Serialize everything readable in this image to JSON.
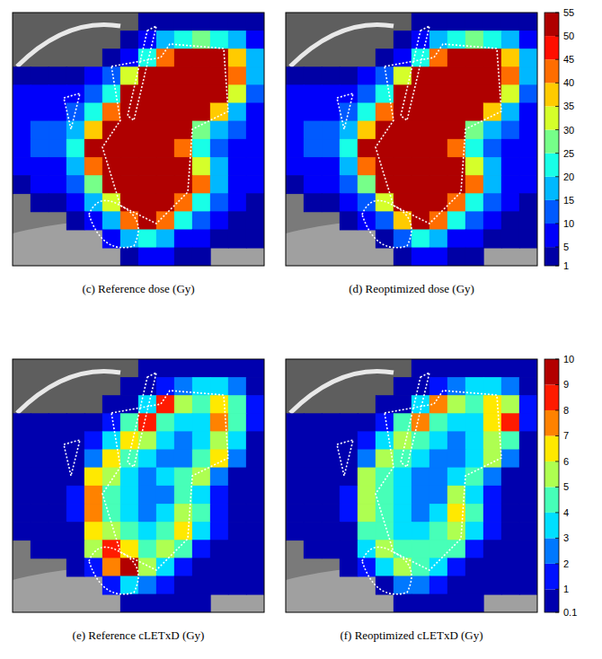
{
  "chart_data": [
    {
      "type": "heatmap",
      "tick_labels": false,
      "zlim": [
        1,
        55
      ],
      "zticks": [
        1,
        5,
        10,
        15,
        20,
        25,
        30,
        35,
        40,
        45,
        50,
        55
      ],
      "panels": [
        {
          "title": "(c) Reference dose (Gy)",
          "cells": [
            [
              null,
              null,
              null,
              null,
              null,
              null,
              null,
              3,
              3,
              3,
              3,
              3,
              3,
              3
            ],
            [
              null,
              null,
              null,
              null,
              null,
              null,
              3,
              7,
              18,
              25,
              30,
              25,
              18,
              10
            ],
            [
              null,
              null,
              null,
              null,
              null,
              3,
              7,
              25,
              45,
              52,
              52,
              52,
              40,
              18
            ],
            [
              3,
              3,
              3,
              3,
              7,
              12,
              35,
              52,
              52,
              52,
              52,
              52,
              45,
              18
            ],
            [
              7,
              7,
              7,
              7,
              12,
              25,
              52,
              52,
              52,
              52,
              52,
              52,
              35,
              12
            ],
            [
              10,
              10,
              10,
              12,
              25,
              45,
              52,
              52,
              52,
              52,
              52,
              40,
              20,
              10
            ],
            [
              10,
              12,
              12,
              18,
              40,
              52,
              52,
              52,
              52,
              52,
              30,
              18,
              12,
              7
            ],
            [
              7,
              12,
              12,
              25,
              52,
              52,
              52,
              52,
              52,
              45,
              25,
              15,
              10,
              7
            ],
            [
              7,
              7,
              10,
              20,
              45,
              52,
              52,
              52,
              52,
              52,
              35,
              18,
              10,
              7
            ],
            [
              3,
              7,
              7,
              12,
              30,
              52,
              52,
              52,
              52,
              52,
              45,
              20,
              10,
              7
            ],
            [
              null,
              3,
              3,
              7,
              18,
              35,
              52,
              52,
              52,
              45,
              25,
              12,
              7,
              3
            ],
            [
              null,
              null,
              null,
              3,
              7,
              18,
              45,
              52,
              45,
              25,
              12,
              7,
              3,
              3
            ],
            [
              null,
              null,
              null,
              null,
              null,
              7,
              18,
              25,
              18,
              10,
              7,
              3,
              3,
              3
            ],
            [
              null,
              null,
              null,
              null,
              null,
              null,
              3,
              7,
              7,
              3,
              3,
              null,
              null,
              null
            ]
          ]
        },
        {
          "title": "(d) Reoptimized dose (Gy)",
          "cells": [
            [
              null,
              null,
              null,
              null,
              null,
              null,
              null,
              3,
              3,
              3,
              3,
              3,
              3,
              3
            ],
            [
              null,
              null,
              null,
              null,
              null,
              null,
              3,
              7,
              18,
              25,
              30,
              25,
              18,
              10
            ],
            [
              null,
              null,
              null,
              null,
              null,
              3,
              7,
              25,
              45,
              52,
              52,
              52,
              40,
              18
            ],
            [
              3,
              3,
              3,
              3,
              7,
              12,
              35,
              52,
              52,
              52,
              52,
              52,
              45,
              18
            ],
            [
              7,
              7,
              7,
              7,
              12,
              25,
              52,
              52,
              52,
              52,
              52,
              52,
              35,
              12
            ],
            [
              10,
              10,
              10,
              12,
              25,
              45,
              52,
              52,
              52,
              52,
              52,
              40,
              20,
              10
            ],
            [
              10,
              12,
              12,
              18,
              40,
              52,
              52,
              52,
              52,
              52,
              30,
              18,
              12,
              7
            ],
            [
              7,
              12,
              12,
              25,
              52,
              52,
              52,
              52,
              52,
              45,
              25,
              15,
              10,
              7
            ],
            [
              7,
              7,
              10,
              20,
              45,
              52,
              52,
              52,
              52,
              52,
              35,
              18,
              10,
              7
            ],
            [
              3,
              7,
              7,
              12,
              30,
              52,
              52,
              52,
              52,
              52,
              45,
              20,
              10,
              7
            ],
            [
              null,
              3,
              3,
              7,
              15,
              35,
              52,
              52,
              52,
              45,
              25,
              12,
              7,
              3
            ],
            [
              null,
              null,
              null,
              3,
              7,
              12,
              40,
              52,
              45,
              25,
              12,
              7,
              3,
              3
            ],
            [
              null,
              null,
              null,
              null,
              null,
              3,
              12,
              25,
              18,
              10,
              7,
              3,
              3,
              3
            ],
            [
              null,
              null,
              null,
              null,
              null,
              null,
              3,
              7,
              7,
              3,
              3,
              null,
              null,
              null
            ]
          ]
        }
      ]
    },
    {
      "type": "heatmap",
      "tick_labels": false,
      "zlim": [
        0.1,
        10
      ],
      "zticks": [
        0.1,
        1,
        2,
        3,
        4,
        5,
        6,
        7,
        8,
        9,
        10
      ],
      "panels": [
        {
          "title": "(e) Reference cLETxD (Gy)",
          "cells": [
            [
              null,
              null,
              null,
              null,
              null,
              null,
              null,
              0.5,
              0.5,
              0.5,
              0.5,
              0.5,
              0.5,
              0.5
            ],
            [
              null,
              null,
              null,
              null,
              null,
              null,
              0.5,
              1,
              2,
              3,
              4,
              4,
              3,
              1
            ],
            [
              null,
              null,
              null,
              null,
              null,
              0.5,
              1,
              4,
              9,
              6,
              5,
              7,
              5,
              2
            ],
            [
              0.5,
              0.5,
              0.5,
              0.5,
              1,
              2,
              5,
              9,
              5,
              4,
              4,
              8,
              5,
              2
            ],
            [
              0.5,
              0.5,
              0.5,
              1,
              2,
              4,
              7,
              6,
              4,
              3,
              4,
              6,
              4,
              1
            ],
            [
              0.5,
              0.5,
              0.5,
              1,
              3,
              7,
              5,
              4,
              3,
              3,
              5,
              7,
              3,
              1
            ],
            [
              0.5,
              0.5,
              0.5,
              1,
              7,
              6,
              4,
              3,
              4,
              5,
              6,
              3,
              1,
              0.5
            ],
            [
              0.5,
              0.5,
              0.5,
              2,
              8,
              5,
              4,
              3,
              3,
              5,
              4,
              2,
              1,
              0.5
            ],
            [
              0.5,
              0.5,
              0.5,
              2,
              8,
              5,
              4,
              3,
              4,
              6,
              5,
              2,
              1,
              0.5
            ],
            [
              0.5,
              0.5,
              0.5,
              1,
              7,
              6,
              5,
              4,
              5,
              7,
              4,
              2,
              1,
              0.5
            ],
            [
              null,
              0.5,
              0.5,
              1,
              6,
              9,
              7,
              5,
              6,
              5,
              2,
              1,
              0.5,
              0.5
            ],
            [
              null,
              null,
              null,
              0.5,
              2,
              8,
              10,
              6,
              4,
              2,
              1,
              0.5,
              0.5,
              0.5
            ],
            [
              null,
              null,
              null,
              null,
              null,
              2,
              4,
              3,
              2,
              1,
              0.5,
              0.5,
              0.5,
              0.5
            ],
            [
              null,
              null,
              null,
              null,
              null,
              null,
              0.5,
              1,
              1,
              0.5,
              0.5,
              null,
              null,
              null
            ]
          ]
        },
        {
          "title": "(f) Reoptimized cLETxD (Gy)",
          "cells": [
            [
              null,
              null,
              null,
              null,
              null,
              null,
              null,
              0.5,
              0.5,
              0.5,
              0.5,
              0.5,
              0.5,
              0.5
            ],
            [
              null,
              null,
              null,
              null,
              null,
              null,
              0.5,
              1,
              2,
              3,
              4,
              4,
              3,
              1
            ],
            [
              null,
              null,
              null,
              null,
              null,
              0.5,
              1,
              4,
              8,
              6,
              5,
              7,
              6,
              2
            ],
            [
              0.5,
              0.5,
              0.5,
              0.5,
              1,
              2,
              5,
              8,
              5,
              4,
              4,
              7,
              9,
              2
            ],
            [
              0.5,
              0.5,
              0.5,
              1,
              2,
              4,
              6,
              5,
              4,
              3,
              4,
              6,
              5,
              1
            ],
            [
              0.5,
              0.5,
              0.5,
              1,
              3,
              6,
              5,
              4,
              3,
              3,
              4,
              6,
              3,
              1
            ],
            [
              0.5,
              0.5,
              0.5,
              1,
              6,
              5,
              4,
              3,
              3,
              4,
              5,
              3,
              1,
              0.5
            ],
            [
              0.5,
              0.5,
              0.5,
              2,
              6,
              5,
              4,
              3,
              3,
              6,
              4,
              2,
              1,
              0.5
            ],
            [
              0.5,
              0.5,
              0.5,
              2,
              6,
              5,
              4,
              3,
              4,
              7,
              5,
              2,
              1,
              0.5
            ],
            [
              0.5,
              0.5,
              0.5,
              1,
              5,
              5,
              4,
              4,
              5,
              6,
              4,
              2,
              1,
              0.5
            ],
            [
              null,
              0.5,
              0.5,
              1,
              4,
              6,
              5,
              5,
              5,
              5,
              2,
              1,
              0.5,
              0.5
            ],
            [
              null,
              null,
              null,
              0.5,
              2,
              4,
              6,
              5,
              4,
              2,
              1,
              0.5,
              0.5,
              0.5
            ],
            [
              null,
              null,
              null,
              null,
              null,
              1,
              3,
              3,
              2,
              1,
              0.5,
              0.5,
              0.5,
              0.5
            ],
            [
              null,
              null,
              null,
              null,
              null,
              null,
              0.5,
              1,
              1,
              0.5,
              0.5,
              null,
              null,
              null
            ]
          ]
        }
      ]
    }
  ]
}
